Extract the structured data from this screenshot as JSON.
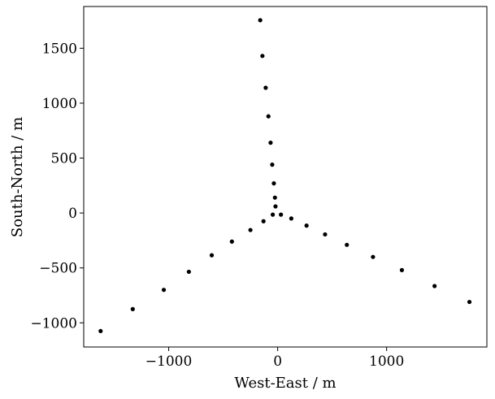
{
  "chart_data": {
    "type": "scatter",
    "xlabel": "West-East / m",
    "ylabel": "South-North / m",
    "xlim": [
      -1780,
      1920
    ],
    "ylim": [
      -1220,
      1880
    ],
    "xticks": [
      -1000,
      0,
      1000
    ],
    "yticks": [
      -1000,
      -500,
      0,
      500,
      1000,
      1500
    ],
    "xtick_labels": [
      "−1000",
      "0",
      "1000"
    ],
    "ytick_labels": [
      "−1000",
      "−500",
      "0",
      "500",
      "1000",
      "1500"
    ],
    "grid": false,
    "marker_color": "#000000",
    "x": [
      -160,
      -140,
      -110,
      -85,
      -65,
      -50,
      -35,
      -25,
      -20,
      -45,
      -130,
      30,
      125,
      265,
      435,
      635,
      875,
      1140,
      1440,
      1760,
      -250,
      -420,
      -605,
      -815,
      -1045,
      -1330,
      -1625
    ],
    "y": [
      1755,
      1430,
      1140,
      880,
      640,
      440,
      270,
      140,
      60,
      -15,
      -75,
      -15,
      -50,
      -115,
      -195,
      -290,
      -400,
      -520,
      -665,
      -810,
      -155,
      -260,
      -385,
      -535,
      -700,
      -875,
      -1075
    ]
  }
}
